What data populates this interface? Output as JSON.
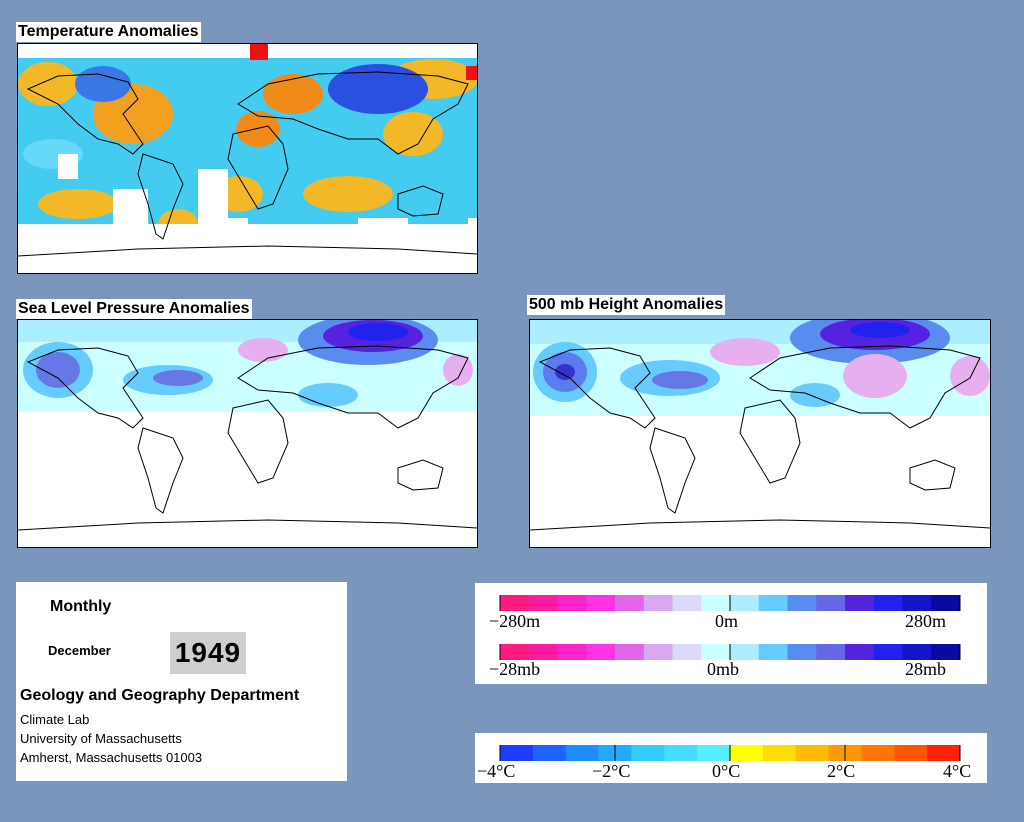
{
  "panels": {
    "temperature": {
      "title": "Temperature Anomalies"
    },
    "slp": {
      "title": "Sea Level Pressure Anomalies"
    },
    "height": {
      "title": "500 mb Height Anomalies"
    }
  },
  "info": {
    "type": "Monthly",
    "month": "December",
    "year": "1949",
    "department": "Geology and Geography Department",
    "lab": "Climate Lab",
    "university": "University of Massachusetts",
    "address": "Amherst, Massachusetts 01003"
  },
  "legends": {
    "height": {
      "low": "−280m",
      "mid": "0m",
      "high": "280m"
    },
    "pressure": {
      "low": "−28mb",
      "mid": "0mb",
      "high": "28mb"
    },
    "temperature": {
      "labels": [
        "−4°C",
        "−2°C",
        "0°C",
        "2°C",
        "4°C"
      ]
    }
  },
  "colors": {
    "background": "#7a96bc",
    "pressure_scale": [
      "#ff1a80",
      "#ff1aa0",
      "#ff22c8",
      "#ff33e6",
      "#e266ea",
      "#d8a8f0",
      "#dcd8fa",
      "#ccffff",
      "#aaeeff",
      "#66ccff",
      "#5a8cf0",
      "#6666e6",
      "#5522e0",
      "#2222ee",
      "#1414c8",
      "#0a0aa0"
    ],
    "temperature_scale": [
      "#1e3cff",
      "#1c64ff",
      "#1e8cff",
      "#22aaff",
      "#33ccff",
      "#44ddff",
      "#55eeff",
      "#ffff00",
      "#ffdd00",
      "#ffbb00",
      "#ff9900",
      "#ff7700",
      "#ff5500",
      "#ff2200"
    ]
  }
}
